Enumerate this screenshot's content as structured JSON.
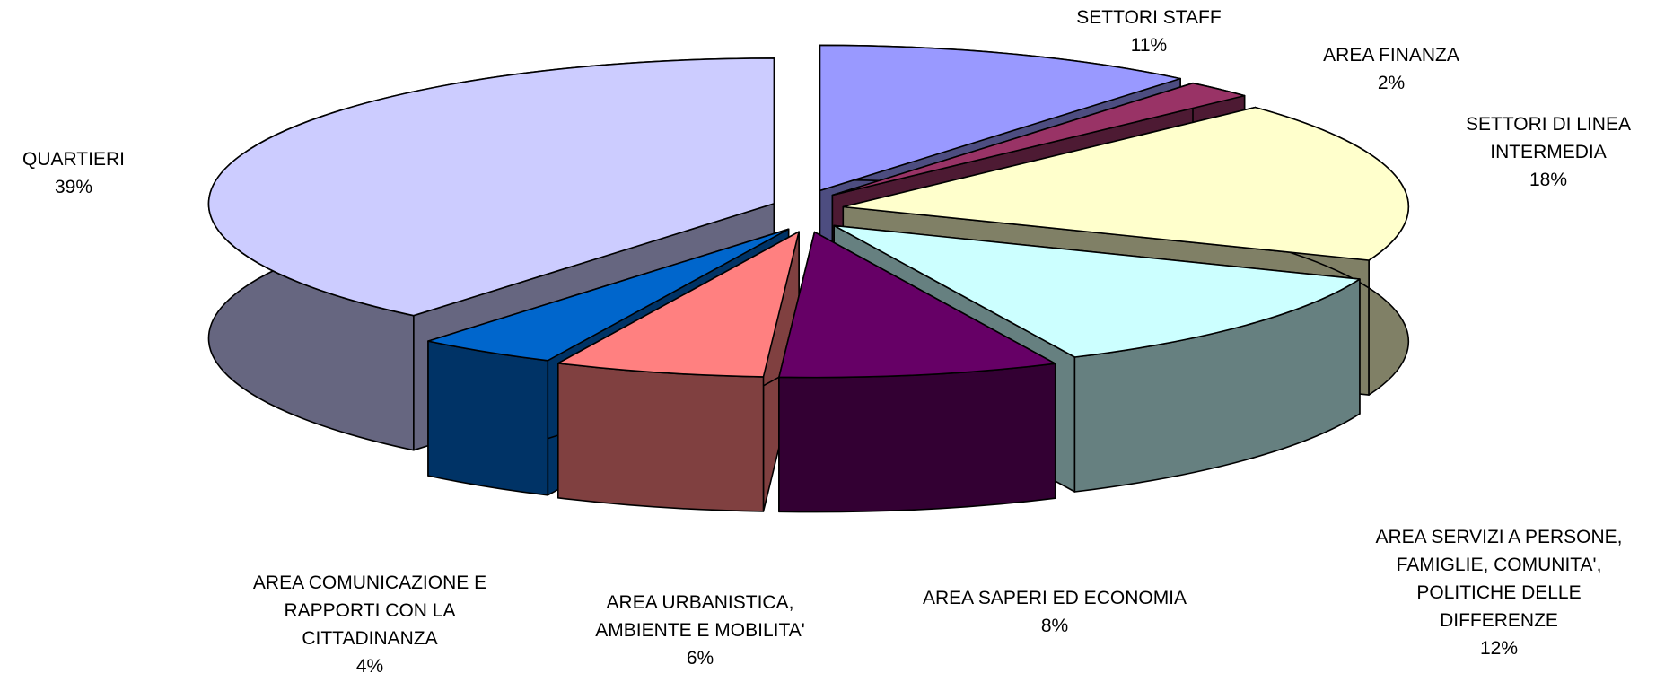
{
  "chart_data": {
    "type": "pie",
    "style": "3d-exploded",
    "title": "",
    "series": [
      {
        "slices": [
          {
            "label": "SETTORI STAFF",
            "value": 11,
            "value_label": "11%",
            "top_color": "#9999FF",
            "side_color": "#4D4D80"
          },
          {
            "label": "AREA FINANZA",
            "value": 2,
            "value_label": "2%",
            "top_color": "#993366",
            "side_color": "#4D1A33"
          },
          {
            "label": "SETTORI DI LINEA INTERMEDIA",
            "value": 18,
            "value_label": "18%",
            "top_color": "#FFFFCC",
            "side_color": "#808066"
          },
          {
            "label": "AREA SERVIZI A PERSONE, FAMIGLIE, COMUNITA', POLITICHE DELLE DIFFERENZE",
            "value": 12,
            "value_label": "12%",
            "top_color": "#CCFFFF",
            "side_color": "#668080"
          },
          {
            "label": "AREA SAPERI ED ECONOMIA",
            "value": 8,
            "value_label": "8%",
            "top_color": "#660066",
            "side_color": "#330033"
          },
          {
            "label": "AREA URBANISTICA, AMBIENTE E MOBILITA'",
            "value": 6,
            "value_label": "6%",
            "top_color": "#FF8080",
            "side_color": "#804040"
          },
          {
            "label": "AREA COMUNICAZIONE  E RAPPORTI CON LA CITTADINANZA",
            "value": 4,
            "value_label": "4%",
            "top_color": "#0066CC",
            "side_color": "#003366"
          },
          {
            "label": "QUARTIERI",
            "value": 39,
            "value_label": "39%",
            "top_color": "#CCCCFF",
            "side_color": "#666680"
          }
        ]
      }
    ],
    "legend": "none",
    "labels": "outside, category and percentage"
  }
}
